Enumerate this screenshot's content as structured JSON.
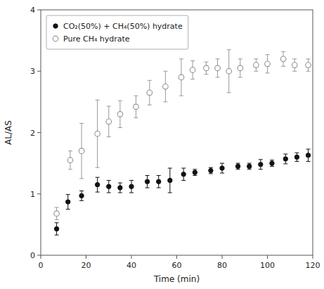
{
  "chart_data": {
    "type": "scatter",
    "xlabel": "Time (min)",
    "ylabel": "AL/AS",
    "xlim": [
      0,
      120
    ],
    "ylim": [
      0,
      4
    ],
    "xticks": [
      0,
      20,
      40,
      60,
      80,
      100,
      120
    ],
    "yticks": [
      0,
      1,
      2,
      3,
      4
    ],
    "grid": false,
    "legend": "upper left",
    "series": [
      {
        "name": "CO₂(50%) + CH₄(50%) hydrate",
        "color": "#111111",
        "marker": "circle",
        "x": [
          7,
          12,
          18,
          25,
          30,
          35,
          40,
          47,
          52,
          57,
          63,
          68,
          75,
          80,
          87,
          92,
          97,
          102,
          108,
          113,
          118
        ],
        "values": [
          0.43,
          0.87,
          0.97,
          1.15,
          1.12,
          1.1,
          1.12,
          1.2,
          1.2,
          1.22,
          1.32,
          1.35,
          1.38,
          1.42,
          1.45,
          1.45,
          1.48,
          1.5,
          1.57,
          1.6,
          1.63
        ],
        "errors": [
          0.1,
          0.12,
          0.08,
          0.12,
          0.1,
          0.08,
          0.1,
          0.1,
          0.1,
          0.2,
          0.1,
          0.05,
          0.05,
          0.08,
          0.05,
          0.05,
          0.08,
          0.05,
          0.08,
          0.07,
          0.1
        ]
      },
      {
        "name": "Pure CH₄ hydrate",
        "color": "#999999",
        "marker": "circle-open",
        "x": [
          7,
          13,
          18,
          25,
          30,
          35,
          42,
          48,
          55,
          62,
          67,
          73,
          78,
          83,
          88,
          95,
          100,
          107,
          112,
          118
        ],
        "values": [
          0.68,
          1.55,
          1.7,
          1.98,
          2.18,
          2.3,
          2.42,
          2.65,
          2.75,
          2.9,
          3.02,
          3.05,
          3.05,
          3.0,
          3.05,
          3.1,
          3.12,
          3.2,
          3.1,
          3.1
        ],
        "errors": [
          0.1,
          0.15,
          0.45,
          0.55,
          0.25,
          0.22,
          0.18,
          0.2,
          0.25,
          0.3,
          0.15,
          0.1,
          0.15,
          0.35,
          0.15,
          0.1,
          0.15,
          0.12,
          0.1,
          0.1
        ]
      }
    ]
  }
}
